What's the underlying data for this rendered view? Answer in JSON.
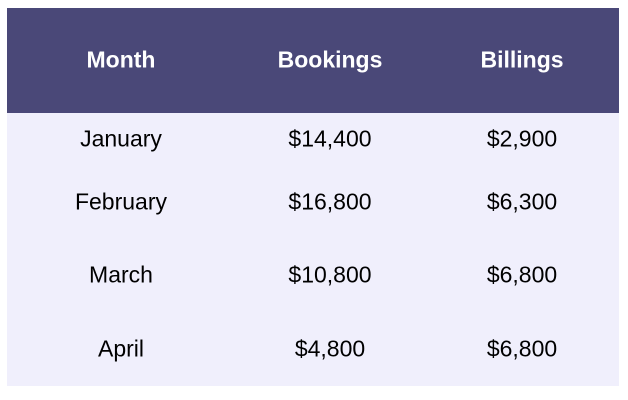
{
  "table": {
    "headers": [
      "Month",
      "Bookings",
      "Billings"
    ],
    "rows": [
      [
        "January",
        "$14,400",
        "$2,900"
      ],
      [
        "February",
        "$16,800",
        "$6,300"
      ],
      [
        "March",
        "$10,800",
        "$6,800"
      ],
      [
        "April",
        "$4,800",
        "$6,800"
      ]
    ]
  },
  "colors": {
    "header_bg": "#4a4878",
    "body_bg": "#f0effc",
    "header_text": "#ffffff",
    "body_text": "#000000"
  }
}
